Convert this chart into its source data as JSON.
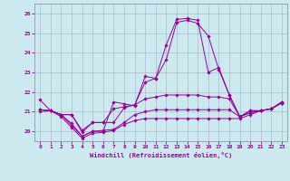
{
  "xlabel": "Windchill (Refroidissement éolien,°C)",
  "bg_color": "#cce9f0",
  "line_color": "#990099",
  "grid_color": "#aaccbb",
  "xlim": [
    -0.5,
    23.5
  ],
  "ylim": [
    19.5,
    26.5
  ],
  "yticks": [
    20,
    21,
    22,
    23,
    24,
    25,
    26
  ],
  "xticks": [
    0,
    1,
    2,
    3,
    4,
    5,
    6,
    7,
    8,
    9,
    10,
    11,
    12,
    13,
    14,
    15,
    16,
    17,
    18,
    19,
    20,
    21,
    22,
    23
  ],
  "series": [
    [
      21.6,
      21.05,
      20.85,
      20.3,
      19.75,
      20.0,
      20.0,
      21.5,
      21.4,
      21.3,
      22.8,
      22.7,
      24.4,
      25.7,
      25.75,
      25.65,
      23.0,
      23.25,
      21.85,
      20.75,
      21.05,
      21.05,
      21.15,
      21.5
    ],
    [
      21.0,
      21.05,
      20.85,
      20.85,
      19.95,
      20.45,
      20.45,
      21.15,
      21.25,
      21.35,
      22.5,
      22.7,
      23.65,
      25.55,
      25.65,
      25.5,
      24.85,
      23.15,
      21.85,
      20.75,
      21.05,
      21.05,
      21.15,
      21.5
    ],
    [
      21.1,
      21.05,
      20.85,
      20.85,
      20.05,
      20.45,
      20.45,
      20.45,
      21.2,
      21.35,
      21.65,
      21.75,
      21.85,
      21.85,
      21.85,
      21.85,
      21.75,
      21.75,
      21.65,
      20.75,
      20.95,
      21.05,
      21.15,
      21.45
    ],
    [
      21.1,
      21.05,
      20.85,
      20.4,
      19.75,
      20.0,
      20.05,
      20.1,
      20.45,
      20.85,
      21.0,
      21.1,
      21.1,
      21.1,
      21.1,
      21.1,
      21.1,
      21.1,
      21.1,
      20.75,
      20.95,
      21.05,
      21.15,
      21.45
    ],
    [
      21.1,
      21.05,
      20.75,
      20.2,
      19.65,
      19.9,
      19.95,
      20.05,
      20.35,
      20.55,
      20.65,
      20.65,
      20.65,
      20.65,
      20.65,
      20.65,
      20.65,
      20.65,
      20.65,
      20.65,
      20.85,
      21.05,
      21.15,
      21.45
    ]
  ]
}
